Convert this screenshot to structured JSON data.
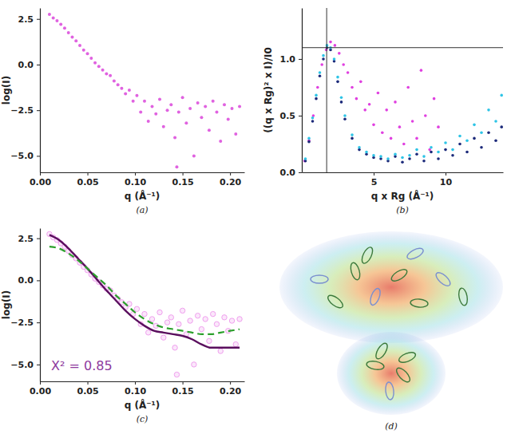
{
  "chart_data": [
    {
      "type": "scatter",
      "label": "(a)",
      "x_label": "q (Å⁻¹)",
      "y_label": "log(I)",
      "color": "#e062e0",
      "marker": "circle",
      "x": [
        0.01,
        0.014,
        0.018,
        0.022,
        0.026,
        0.03,
        0.034,
        0.038,
        0.042,
        0.046,
        0.05,
        0.054,
        0.058,
        0.062,
        0.066,
        0.07,
        0.074,
        0.078,
        0.082,
        0.086,
        0.09,
        0.094,
        0.098,
        0.102,
        0.106,
        0.11,
        0.114,
        0.118,
        0.122,
        0.126,
        0.13,
        0.134,
        0.138,
        0.142,
        0.146,
        0.15,
        0.154,
        0.158,
        0.162,
        0.166,
        0.17,
        0.174,
        0.178,
        0.182,
        0.186,
        0.19,
        0.194,
        0.198,
        0.202,
        0.206,
        0.21,
        0.144
      ],
      "values": [
        2.75,
        2.55,
        2.4,
        2.2,
        2.0,
        1.75,
        1.5,
        1.3,
        1.05,
        0.8,
        0.6,
        0.35,
        0.1,
        -0.1,
        -0.3,
        -0.5,
        -0.6,
        -0.9,
        -1.1,
        -1.3,
        -1.6,
        -1.4,
        -2.0,
        -1.7,
        -2.6,
        -2.0,
        -3.1,
        -2.3,
        -2.7,
        -1.9,
        -3.4,
        -2.5,
        -2.2,
        -4.0,
        -2.6,
        -1.8,
        -3.2,
        -2.4,
        -5.0,
        -2.1,
        -2.9,
        -2.3,
        -3.6,
        -2.0,
        -2.6,
        -4.2,
        -2.2,
        -3.0,
        -2.4,
        -3.8,
        -2.3,
        -5.6
      ],
      "xlim": [
        0,
        0.215
      ],
      "ylim": [
        -5.9,
        3.1
      ],
      "xticks": [
        {
          "value": 0,
          "label": "0.00"
        },
        {
          "value": 0.05,
          "label": "0.05"
        },
        {
          "value": 0.1,
          "label": "0.10"
        },
        {
          "value": 0.15,
          "label": "0.15"
        },
        {
          "value": 0.2,
          "label": "0.20"
        }
      ],
      "yticks": [
        {
          "value": -5,
          "label": "−5.0"
        },
        {
          "value": -2.5,
          "label": "−2.5"
        },
        {
          "value": 0,
          "label": "0.0"
        },
        2.5
      ]
    },
    {
      "type": "scatter",
      "label": "(b)",
      "x_label": "q x Rg (Å⁻¹)",
      "y_label": "((q x Rg)² x I)/I0",
      "marker": "circle",
      "crosshair": {
        "x": 1.73,
        "y": 1.1
      },
      "series": [
        {
          "color": "#e040e0",
          "x": [
            0.2,
            0.5,
            0.8,
            1.1,
            1.4,
            1.7,
            2.0,
            2.3,
            2.6,
            2.9,
            3.2,
            3.5,
            3.8,
            4.1,
            4.4,
            4.7,
            5.0,
            5.3,
            5.6,
            5.9,
            6.2,
            6.5,
            6.8,
            7.1,
            7.4,
            7.7,
            8.0,
            8.3,
            8.6,
            8.9,
            9.2,
            9.5
          ],
          "values": [
            0.1,
            0.28,
            0.5,
            0.75,
            0.95,
            1.08,
            1.15,
            1.12,
            1.05,
            0.95,
            0.88,
            0.75,
            0.65,
            0.8,
            0.55,
            0.6,
            0.42,
            0.7,
            0.35,
            0.55,
            0.3,
            0.62,
            0.4,
            0.25,
            0.75,
            0.45,
            0.3,
            0.9,
            0.5,
            0.2,
            0.65,
            0.4
          ]
        },
        {
          "color": "#1c2a7a",
          "x": [
            0.25,
            0.5,
            0.75,
            1.0,
            1.25,
            1.5,
            1.75,
            2.0,
            2.25,
            2.5,
            2.75,
            3.0,
            3.5,
            4.0,
            4.5,
            5.0,
            5.5,
            6.0,
            6.5,
            7.0,
            7.5,
            8.0,
            8.5,
            9.0,
            9.5,
            10.0,
            10.5,
            11.0,
            11.5,
            12.0,
            12.5,
            13.0,
            13.5,
            13.9
          ],
          "values": [
            0.1,
            0.27,
            0.45,
            0.65,
            0.85,
            1.0,
            1.1,
            1.08,
            0.98,
            0.8,
            0.62,
            0.47,
            0.3,
            0.2,
            0.16,
            0.13,
            0.12,
            0.1,
            0.14,
            0.09,
            0.12,
            0.16,
            0.1,
            0.18,
            0.12,
            0.2,
            0.15,
            0.25,
            0.18,
            0.3,
            0.22,
            0.35,
            0.28,
            0.4
          ]
        },
        {
          "color": "#2ec4e6",
          "x": [
            0.25,
            0.5,
            0.75,
            1.0,
            1.25,
            1.5,
            1.75,
            2.0,
            2.25,
            2.5,
            2.75,
            3.0,
            3.5,
            4.0,
            4.5,
            5.0,
            5.5,
            6.0,
            6.5,
            7.0,
            7.5,
            8.0,
            8.5,
            9.0,
            9.5,
            10.0,
            10.5,
            11.0,
            11.5,
            12.0,
            12.5,
            13.0,
            13.5,
            13.9
          ],
          "values": [
            0.12,
            0.3,
            0.48,
            0.68,
            0.88,
            1.03,
            1.12,
            1.1,
            1.0,
            0.84,
            0.66,
            0.5,
            0.33,
            0.22,
            0.18,
            0.15,
            0.14,
            0.12,
            0.16,
            0.13,
            0.15,
            0.2,
            0.14,
            0.22,
            0.18,
            0.26,
            0.2,
            0.32,
            0.28,
            0.42,
            0.35,
            0.55,
            0.45,
            0.68
          ]
        }
      ],
      "xlim": [
        0,
        14
      ],
      "ylim": [
        0,
        1.45
      ],
      "xticks": [
        5,
        10
      ],
      "yticks": [
        {
          "value": 0,
          "label": "0.0"
        },
        {
          "value": 0.5,
          "label": "0.5"
        },
        {
          "value": 1,
          "label": "1.0"
        }
      ]
    },
    {
      "type": "line",
      "label": "(c)",
      "x_label": "q (Å⁻¹)",
      "y_label": "log(I)",
      "annotation": "X² = 0.85",
      "series": [
        {
          "type": "scatter",
          "marker": "circle-open",
          "color": "#f0a0ee",
          "x": [
            0.01,
            0.014,
            0.018,
            0.022,
            0.026,
            0.03,
            0.034,
            0.038,
            0.042,
            0.046,
            0.05,
            0.054,
            0.058,
            0.062,
            0.066,
            0.07,
            0.074,
            0.078,
            0.082,
            0.086,
            0.09,
            0.094,
            0.098,
            0.102,
            0.106,
            0.11,
            0.114,
            0.118,
            0.122,
            0.126,
            0.13,
            0.134,
            0.138,
            0.142,
            0.146,
            0.15,
            0.154,
            0.158,
            0.162,
            0.166,
            0.17,
            0.174,
            0.178,
            0.182,
            0.186,
            0.19,
            0.194,
            0.198,
            0.202,
            0.206,
            0.21,
            0.144
          ],
          "values": [
            2.75,
            2.55,
            2.4,
            2.2,
            2.0,
            1.75,
            1.5,
            1.3,
            1.05,
            0.8,
            0.6,
            0.35,
            0.1,
            -0.1,
            -0.3,
            -0.5,
            -0.6,
            -0.9,
            -1.1,
            -1.3,
            -1.6,
            -1.4,
            -2.0,
            -1.7,
            -2.6,
            -2.0,
            -3.1,
            -2.3,
            -2.7,
            -1.9,
            -3.4,
            -2.5,
            -2.2,
            -4.0,
            -2.6,
            -1.8,
            -3.2,
            -2.4,
            -5.0,
            -2.1,
            -2.9,
            -2.3,
            -3.6,
            -2.0,
            -2.6,
            -4.2,
            -2.2,
            -3.0,
            -2.4,
            -3.8,
            -2.3,
            -5.6
          ]
        },
        {
          "type": "line",
          "line_style": "solid",
          "color": "#5a0f5e",
          "x": [
            0.01,
            0.02,
            0.03,
            0.04,
            0.05,
            0.06,
            0.07,
            0.08,
            0.09,
            0.1,
            0.11,
            0.12,
            0.13,
            0.14,
            0.15,
            0.16,
            0.17,
            0.18,
            0.19,
            0.2,
            0.21
          ],
          "values": [
            2.7,
            2.4,
            1.9,
            1.3,
            0.7,
            0.05,
            -0.6,
            -1.2,
            -1.8,
            -2.3,
            -2.7,
            -3.0,
            -3.1,
            -3.2,
            -3.3,
            -3.5,
            -3.8,
            -4.0,
            -4.0,
            -4.0,
            -4.0
          ]
        },
        {
          "type": "line",
          "line_style": "dashed",
          "color": "#2ca02c",
          "x": [
            0.01,
            0.02,
            0.03,
            0.04,
            0.05,
            0.06,
            0.07,
            0.08,
            0.09,
            0.1,
            0.11,
            0.12,
            0.13,
            0.14,
            0.15,
            0.16,
            0.17,
            0.18,
            0.19,
            0.2,
            0.21
          ],
          "values": [
            2.0,
            1.9,
            1.6,
            1.2,
            0.7,
            0.2,
            -0.3,
            -0.9,
            -1.4,
            -1.9,
            -2.3,
            -2.6,
            -2.8,
            -2.9,
            -3.0,
            -3.1,
            -3.2,
            -3.2,
            -3.1,
            -3.0,
            -2.9
          ]
        }
      ],
      "xlim": [
        0,
        0.215
      ],
      "ylim": [
        -6.0,
        3.1
      ],
      "xticks": [
        {
          "value": 0,
          "label": "0.00"
        },
        {
          "value": 0.05,
          "label": "0.05"
        },
        {
          "value": 0.1,
          "label": "0.10"
        },
        {
          "value": 0.15,
          "label": "0.15"
        },
        {
          "value": 0.2,
          "label": "0.20"
        }
      ],
      "yticks": [
        {
          "value": -5,
          "label": "−5.0"
        },
        {
          "value": -2.5,
          "label": "−2.5"
        },
        {
          "value": 0,
          "label": "0.0"
        },
        2.5
      ]
    }
  ],
  "images": [
    {
      "label": "(d)"
    }
  ]
}
